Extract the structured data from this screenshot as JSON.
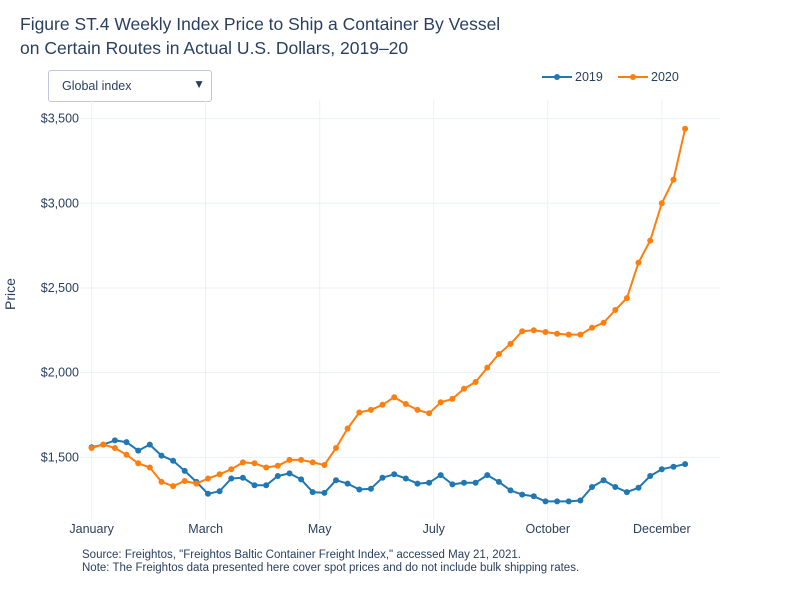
{
  "title_lines": [
    "Figure ST.4 Weekly Index Price to Ship a Container By Vessel",
    "on Certain Routes in Actual U.S. Dollars, 2019–20"
  ],
  "dropdown": {
    "selected": "Global index",
    "arrow_icon": "triangle-down-icon"
  },
  "notes": [
    "Source: Freightos, \"Freightos Baltic Container Freight Index,\" accessed May 21, 2021.",
    "Note: The Freightos data presented here cover spot prices and do not include bulk shipping rates."
  ],
  "chart_data": {
    "type": "line",
    "ylabel": "Price",
    "ylim": [
      1130,
      3610
    ],
    "y_ticks": [
      1500,
      2000,
      2500,
      3000,
      3500
    ],
    "y_tick_labels": [
      "$1,500",
      "$2,000",
      "$2,500",
      "$3,000",
      "$3,500"
    ],
    "x_tick_labels": [
      "January",
      "March",
      "May",
      "July",
      "October",
      "December"
    ],
    "x_tick_weeks": [
      0,
      9.8,
      19.6,
      29.4,
      39.2,
      49
    ],
    "x_range_weeks": [
      -1,
      54
    ],
    "legend_position": "top-right",
    "grid": true,
    "series": [
      {
        "name": "2019",
        "color": "#1f77b4",
        "values": [
          1560,
          1575,
          1600,
          1590,
          1540,
          1575,
          1510,
          1480,
          1420,
          1355,
          1285,
          1300,
          1375,
          1380,
          1335,
          1335,
          1390,
          1405,
          1370,
          1295,
          1290,
          1365,
          1345,
          1310,
          1315,
          1380,
          1400,
          1375,
          1345,
          1350,
          1395,
          1340,
          1350,
          1350,
          1395,
          1355,
          1305,
          1280,
          1270,
          1240,
          1240,
          1240,
          1245,
          1325,
          1365,
          1325,
          1295,
          1320,
          1390,
          1430,
          1445,
          1460
        ]
      },
      {
        "name": "2020",
        "color": "#ff7f0e",
        "values": [
          1555,
          1575,
          1555,
          1515,
          1465,
          1440,
          1355,
          1330,
          1360,
          1345,
          1375,
          1400,
          1430,
          1470,
          1465,
          1440,
          1450,
          1485,
          1485,
          1470,
          1455,
          1555,
          1670,
          1765,
          1780,
          1810,
          1855,
          1815,
          1780,
          1760,
          1825,
          1845,
          1905,
          1945,
          2030,
          2110,
          2170,
          2245,
          2250,
          2240,
          2230,
          2225,
          2225,
          2265,
          2295,
          2370,
          2440,
          2650,
          2780,
          3000,
          3140,
          3440
        ]
      }
    ]
  }
}
